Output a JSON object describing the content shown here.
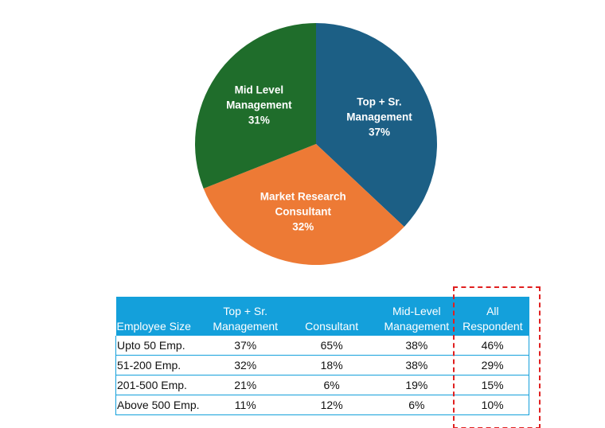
{
  "chart_data": {
    "type": "pie",
    "categories": [
      "Top + Sr. Management",
      "Market Research Consultant",
      "Mid Level Management"
    ],
    "values": [
      37,
      32,
      31
    ],
    "value_labels": [
      "37%",
      "32%",
      "31%"
    ],
    "colors": [
      "#1c5f85",
      "#ed7a35",
      "#1f6d2b"
    ]
  },
  "table": {
    "header": [
      "Employee Size",
      "Top + Sr. Management",
      "Consultant",
      "Mid-Level Management",
      "All Respondent"
    ],
    "rows": [
      [
        "Upto 50 Emp.",
        "37%",
        "65%",
        "38%",
        "46%"
      ],
      [
        "51-200 Emp.",
        "32%",
        "18%",
        "38%",
        "29%"
      ],
      [
        "201-500 Emp.",
        "21%",
        "6%",
        "19%",
        "15%"
      ],
      [
        "Above 500 Emp.",
        "11%",
        "12%",
        "6%",
        "10%"
      ]
    ]
  }
}
